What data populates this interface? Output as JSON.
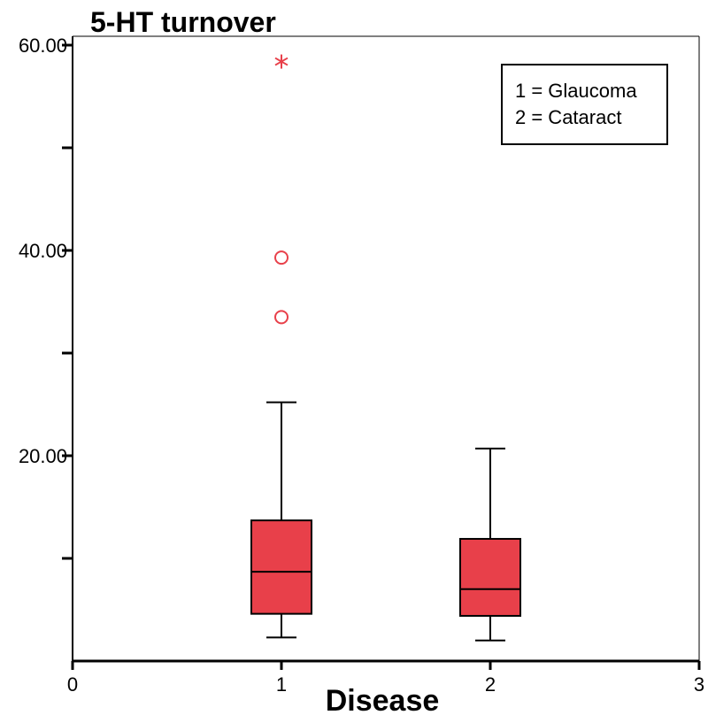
{
  "chart_data": {
    "type": "box",
    "title": "5-HT turnover",
    "xlabel": "Disease",
    "ylabel": "",
    "xlim": [
      0,
      3
    ],
    "ylim": [
      0,
      60
    ],
    "x_ticks": [
      "0",
      "1",
      "2",
      "3"
    ],
    "y_tick_labels": [
      "20.00",
      "40.00",
      "60.00"
    ],
    "y_label_values": [
      20,
      40,
      60
    ],
    "y_minor_tick_values": [
      10,
      30,
      50
    ],
    "legend": {
      "placement": "top-right",
      "lines": [
        "1 = Glaucoma",
        "2 = Cataract"
      ]
    },
    "box_color": "#e8404a",
    "outlier_color": "#e8404a",
    "groups": [
      {
        "x": 1,
        "whisker_low": 2.3,
        "q1": 4.6,
        "median": 8.7,
        "q3": 13.7,
        "whisker_high": 25.2,
        "outliers": [
          33.5,
          39.3
        ],
        "extremes": [
          58.4
        ]
      },
      {
        "x": 2,
        "whisker_low": 2.0,
        "q1": 4.4,
        "median": 7.0,
        "q3": 11.9,
        "whisker_high": 20.7,
        "outliers": [],
        "extremes": []
      }
    ]
  }
}
